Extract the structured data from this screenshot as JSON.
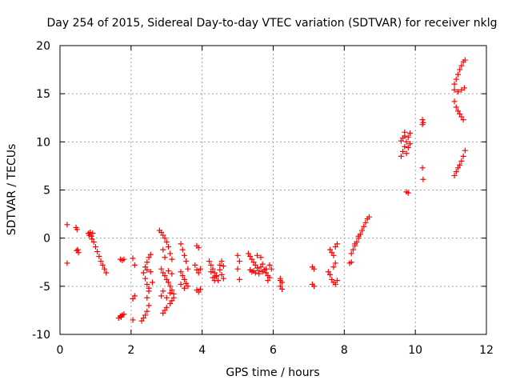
{
  "chart_data": {
    "type": "scatter",
    "title": "Day 254 of 2015, Sidereal Day-to-day VTEC variation (SDTVAR) for receiver nklg",
    "xlabel": "GPS time / hours",
    "ylabel": "SDTVAR / TECUs",
    "xlim": [
      0,
      12
    ],
    "ylim": [
      -10,
      20
    ],
    "xticks": [
      0,
      2,
      4,
      6,
      8,
      10,
      12
    ],
    "yticks": [
      -10,
      -5,
      0,
      5,
      10,
      15,
      20
    ],
    "grid": true,
    "marker": "+",
    "color": "#ff0000",
    "series": [
      {
        "name": "SDTVAR",
        "points": [
          [
            0.2,
            1.4
          ],
          [
            0.2,
            -2.6
          ],
          [
            0.45,
            1.1
          ],
          [
            0.48,
            0.9
          ],
          [
            0.5,
            -1.2
          ],
          [
            0.52,
            -1.5
          ],
          [
            0.47,
            -1.3
          ],
          [
            0.8,
            0.5
          ],
          [
            0.82,
            0.3
          ],
          [
            0.85,
            0.6
          ],
          [
            0.88,
            0.2
          ],
          [
            0.9,
            -0.1
          ],
          [
            0.92,
            0.5
          ],
          [
            0.95,
            -0.4
          ],
          [
            1.0,
            -0.9
          ],
          [
            1.05,
            -1.4
          ],
          [
            1.1,
            -1.9
          ],
          [
            1.15,
            -2.4
          ],
          [
            1.2,
            -2.8
          ],
          [
            1.25,
            -3.2
          ],
          [
            1.3,
            -3.6
          ],
          [
            1.7,
            -2.2
          ],
          [
            1.75,
            -2.3
          ],
          [
            1.8,
            -2.2
          ],
          [
            1.65,
            -8.3
          ],
          [
            1.7,
            -8.1
          ],
          [
            1.75,
            -8.0
          ],
          [
            1.8,
            -7.9
          ],
          [
            1.72,
            -8.2
          ],
          [
            2.05,
            -2.1
          ],
          [
            2.1,
            -2.8
          ],
          [
            2.05,
            -6.3
          ],
          [
            2.1,
            -6.0
          ],
          [
            2.05,
            -8.5
          ],
          [
            2.3,
            -8.6
          ],
          [
            2.35,
            -8.3
          ],
          [
            2.4,
            -8.0
          ],
          [
            2.45,
            -7.6
          ],
          [
            2.5,
            -7.0
          ],
          [
            2.45,
            -6.2
          ],
          [
            2.5,
            -5.5
          ],
          [
            2.45,
            -4.8
          ],
          [
            2.4,
            -4.2
          ],
          [
            2.35,
            -3.6
          ],
          [
            2.4,
            -3.0
          ],
          [
            2.45,
            -2.5
          ],
          [
            2.5,
            -2.0
          ],
          [
            2.55,
            -1.7
          ],
          [
            2.45,
            -3.3
          ],
          [
            2.55,
            -3.5
          ],
          [
            2.6,
            -4.6
          ],
          [
            2.5,
            -5.2
          ],
          [
            2.8,
            0.8
          ],
          [
            2.85,
            0.6
          ],
          [
            2.9,
            0.3
          ],
          [
            2.95,
            0.0
          ],
          [
            3.0,
            -0.4
          ],
          [
            3.05,
            -0.9
          ],
          [
            3.1,
            -1.6
          ],
          [
            3.15,
            -2.2
          ],
          [
            2.9,
            -1.2
          ],
          [
            2.95,
            -2.0
          ],
          [
            2.85,
            -3.2
          ],
          [
            2.9,
            -3.6
          ],
          [
            2.95,
            -3.9
          ],
          [
            3.0,
            -4.3
          ],
          [
            3.05,
            -4.6
          ],
          [
            3.1,
            -5.0
          ],
          [
            3.15,
            -5.4
          ],
          [
            3.2,
            -5.8
          ],
          [
            3.2,
            -6.2
          ],
          [
            3.15,
            -6.5
          ],
          [
            3.1,
            -6.8
          ],
          [
            3.0,
            -7.2
          ],
          [
            2.95,
            -7.5
          ],
          [
            2.9,
            -7.8
          ],
          [
            2.85,
            -6.0
          ],
          [
            2.9,
            -5.5
          ],
          [
            3.0,
            -6.2
          ],
          [
            3.1,
            -5.7
          ],
          [
            3.05,
            -3.4
          ],
          [
            3.15,
            -3.7
          ],
          [
            3.4,
            -0.6
          ],
          [
            3.45,
            -1.2
          ],
          [
            3.5,
            -1.8
          ],
          [
            3.55,
            -2.4
          ],
          [
            3.6,
            -3.2
          ],
          [
            3.4,
            -3.5
          ],
          [
            3.45,
            -3.9
          ],
          [
            3.5,
            -4.3
          ],
          [
            3.55,
            -4.7
          ],
          [
            3.6,
            -5.0
          ],
          [
            3.4,
            -4.8
          ],
          [
            3.5,
            -5.2
          ],
          [
            3.85,
            -0.8
          ],
          [
            3.9,
            -1.0
          ],
          [
            3.8,
            -2.8
          ],
          [
            3.85,
            -3.3
          ],
          [
            3.9,
            -3.6
          ],
          [
            3.95,
            -3.2
          ],
          [
            3.85,
            -5.4
          ],
          [
            3.9,
            -5.6
          ],
          [
            3.95,
            -5.3
          ],
          [
            4.2,
            -2.4
          ],
          [
            4.25,
            -2.8
          ],
          [
            4.3,
            -3.2
          ],
          [
            4.35,
            -3.6
          ],
          [
            4.4,
            -3.9
          ],
          [
            4.25,
            -3.5
          ],
          [
            4.3,
            -4.1
          ],
          [
            4.35,
            -4.4
          ],
          [
            4.4,
            -4.0
          ],
          [
            4.5,
            -2.8
          ],
          [
            4.55,
            -2.4
          ],
          [
            4.6,
            -2.9
          ],
          [
            4.55,
            -3.8
          ],
          [
            4.6,
            -4.2
          ],
          [
            4.5,
            -3.3
          ],
          [
            4.45,
            -4.4
          ],
          [
            5.0,
            -1.8
          ],
          [
            5.05,
            -2.4
          ],
          [
            5.0,
            -3.2
          ],
          [
            5.05,
            -4.3
          ],
          [
            5.3,
            -1.6
          ],
          [
            5.35,
            -1.9
          ],
          [
            5.4,
            -2.2
          ],
          [
            5.45,
            -2.5
          ],
          [
            5.5,
            -2.8
          ],
          [
            5.55,
            -3.1
          ],
          [
            5.6,
            -3.4
          ],
          [
            5.65,
            -3.0
          ],
          [
            5.7,
            -2.7
          ],
          [
            5.75,
            -3.3
          ],
          [
            5.8,
            -3.6
          ],
          [
            5.85,
            -3.9
          ],
          [
            5.9,
            -4.1
          ],
          [
            5.4,
            -3.5
          ],
          [
            5.5,
            -3.6
          ],
          [
            5.6,
            -3.7
          ],
          [
            5.7,
            -3.5
          ],
          [
            5.8,
            -3.2
          ],
          [
            5.35,
            -3.3
          ],
          [
            5.45,
            -3.4
          ],
          [
            5.55,
            -1.8
          ],
          [
            5.65,
            -2.0
          ],
          [
            5.9,
            -2.8
          ],
          [
            5.95,
            -3.2
          ],
          [
            5.85,
            -4.4
          ],
          [
            6.2,
            -4.2
          ],
          [
            6.25,
            -4.6
          ],
          [
            6.2,
            -5.0
          ],
          [
            6.25,
            -5.3
          ],
          [
            6.2,
            -4.4
          ],
          [
            7.1,
            -3.0
          ],
          [
            7.15,
            -3.2
          ],
          [
            7.1,
            -4.8
          ],
          [
            7.15,
            -5.0
          ],
          [
            7.6,
            -1.2
          ],
          [
            7.65,
            -1.5
          ],
          [
            7.7,
            -1.8
          ],
          [
            7.75,
            -0.9
          ],
          [
            7.8,
            -0.6
          ],
          [
            7.55,
            -3.5
          ],
          [
            7.6,
            -3.8
          ],
          [
            7.65,
            -4.3
          ],
          [
            7.7,
            -4.6
          ],
          [
            7.75,
            -4.8
          ],
          [
            7.8,
            -4.4
          ],
          [
            7.7,
            -3.0
          ],
          [
            7.75,
            -2.6
          ],
          [
            8.15,
            -2.6
          ],
          [
            8.2,
            -2.5
          ],
          [
            8.2,
            -1.6
          ],
          [
            8.25,
            -1.2
          ],
          [
            8.3,
            -0.8
          ],
          [
            8.35,
            -0.4
          ],
          [
            8.4,
            0.0
          ],
          [
            8.45,
            0.4
          ],
          [
            8.5,
            0.8
          ],
          [
            8.55,
            1.2
          ],
          [
            8.6,
            1.6
          ],
          [
            8.65,
            2.0
          ],
          [
            8.7,
            2.2
          ],
          [
            8.3,
            -0.6
          ],
          [
            8.4,
            0.2
          ],
          [
            9.6,
            8.5
          ],
          [
            9.65,
            9.0
          ],
          [
            9.7,
            9.5
          ],
          [
            9.75,
            10.0
          ],
          [
            9.8,
            10.5
          ],
          [
            9.85,
            10.9
          ],
          [
            9.65,
            10.4
          ],
          [
            9.7,
            10.6
          ],
          [
            9.75,
            8.8
          ],
          [
            9.8,
            9.4
          ],
          [
            9.85,
            9.8
          ],
          [
            9.6,
            10.1
          ],
          [
            9.7,
            11.0
          ],
          [
            9.75,
            4.8
          ],
          [
            9.8,
            4.7
          ],
          [
            10.2,
            12.3
          ],
          [
            10.22,
            12.0
          ],
          [
            10.2,
            11.8
          ],
          [
            10.2,
            7.3
          ],
          [
            10.22,
            6.1
          ],
          [
            11.1,
            6.5
          ],
          [
            11.15,
            6.9
          ],
          [
            11.2,
            7.3
          ],
          [
            11.25,
            7.6
          ],
          [
            11.3,
            8.0
          ],
          [
            11.35,
            8.5
          ],
          [
            11.4,
            9.1
          ],
          [
            11.1,
            14.2
          ],
          [
            11.15,
            13.6
          ],
          [
            11.2,
            13.2
          ],
          [
            11.25,
            12.9
          ],
          [
            11.3,
            12.6
          ],
          [
            11.35,
            12.3
          ],
          [
            11.1,
            15.4
          ],
          [
            11.2,
            15.2
          ],
          [
            11.3,
            15.4
          ],
          [
            11.38,
            15.6
          ],
          [
            11.1,
            16.0
          ],
          [
            11.15,
            16.5
          ],
          [
            11.2,
            17.0
          ],
          [
            11.25,
            17.5
          ],
          [
            11.3,
            17.9
          ],
          [
            11.35,
            18.3
          ],
          [
            11.4,
            18.5
          ]
        ]
      }
    ]
  }
}
